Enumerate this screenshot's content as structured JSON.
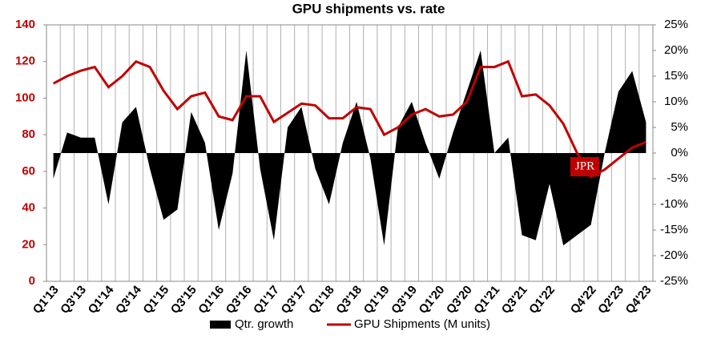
{
  "chart_data": {
    "type": "area-line",
    "title": "GPU shipments vs. rate",
    "logo": "JPR",
    "categories": [
      "Q1'13",
      null,
      "Q3'13",
      null,
      "Q1'14",
      null,
      "Q3'14",
      null,
      "Q1'15",
      null,
      "Q3'15",
      null,
      "Q1'16",
      null,
      "Q3'16",
      null,
      "Q1'17",
      null,
      "Q3'17",
      null,
      "Q1'18",
      null,
      "Q3'18",
      null,
      "Q1'19",
      null,
      "Q3'19",
      null,
      "Q1'20",
      null,
      "Q3'20",
      null,
      "Q1'21",
      null,
      "Q3'21",
      null,
      "Q1'22",
      null,
      null,
      "Q4'22",
      null,
      "Q2'23",
      null,
      "Q4'23"
    ],
    "series": [
      {
        "name": "Qtr. growth",
        "color": "#000000",
        "axis": "y2",
        "kind": "area",
        "values": [
          -5,
          4,
          3,
          3,
          -10,
          6,
          9,
          -3,
          -13,
          -11,
          8,
          2,
          -15,
          -4,
          20,
          -3,
          -17,
          5,
          9,
          -3,
          -10,
          2,
          10,
          -1,
          -18,
          5,
          10,
          2,
          -5,
          4,
          12,
          20,
          0,
          3,
          -16,
          -17,
          -6,
          -18,
          -16,
          -14,
          0,
          12,
          16,
          6
        ]
      },
      {
        "name": "GPU Shipments (M units)",
        "color": "#c00000",
        "axis": "y",
        "kind": "line",
        "values": [
          108,
          112,
          115,
          117,
          106,
          112,
          120,
          117,
          104,
          94,
          101,
          103,
          90,
          88,
          101,
          101,
          87,
          92,
          97,
          96,
          89,
          89,
          95,
          94,
          80,
          84,
          91,
          94,
          90,
          91,
          98,
          117,
          117,
          120,
          101,
          102,
          96,
          86,
          70,
          57,
          61,
          67,
          73,
          76
        ]
      }
    ],
    "ylim": [
      0,
      140
    ],
    "yticks": [
      0,
      20,
      40,
      60,
      80,
      100,
      120,
      140
    ],
    "y2lim": [
      -25,
      25
    ],
    "y2ticks": [
      {
        "value": -25,
        "label": "-25%"
      },
      {
        "value": -20,
        "label": "-20%"
      },
      {
        "value": -15,
        "label": "-15%"
      },
      {
        "value": -10,
        "label": "-10%"
      },
      {
        "value": -5,
        "label": "-5%"
      },
      {
        "value": 0,
        "label": "0%"
      },
      {
        "value": 5,
        "label": "5%"
      },
      {
        "value": 10,
        "label": "10%"
      },
      {
        "value": 15,
        "label": "15%"
      },
      {
        "value": 20,
        "label": "20%"
      },
      {
        "value": 25,
        "label": "25%"
      }
    ],
    "ytick_color": "#c00000",
    "grid": "vertical"
  }
}
